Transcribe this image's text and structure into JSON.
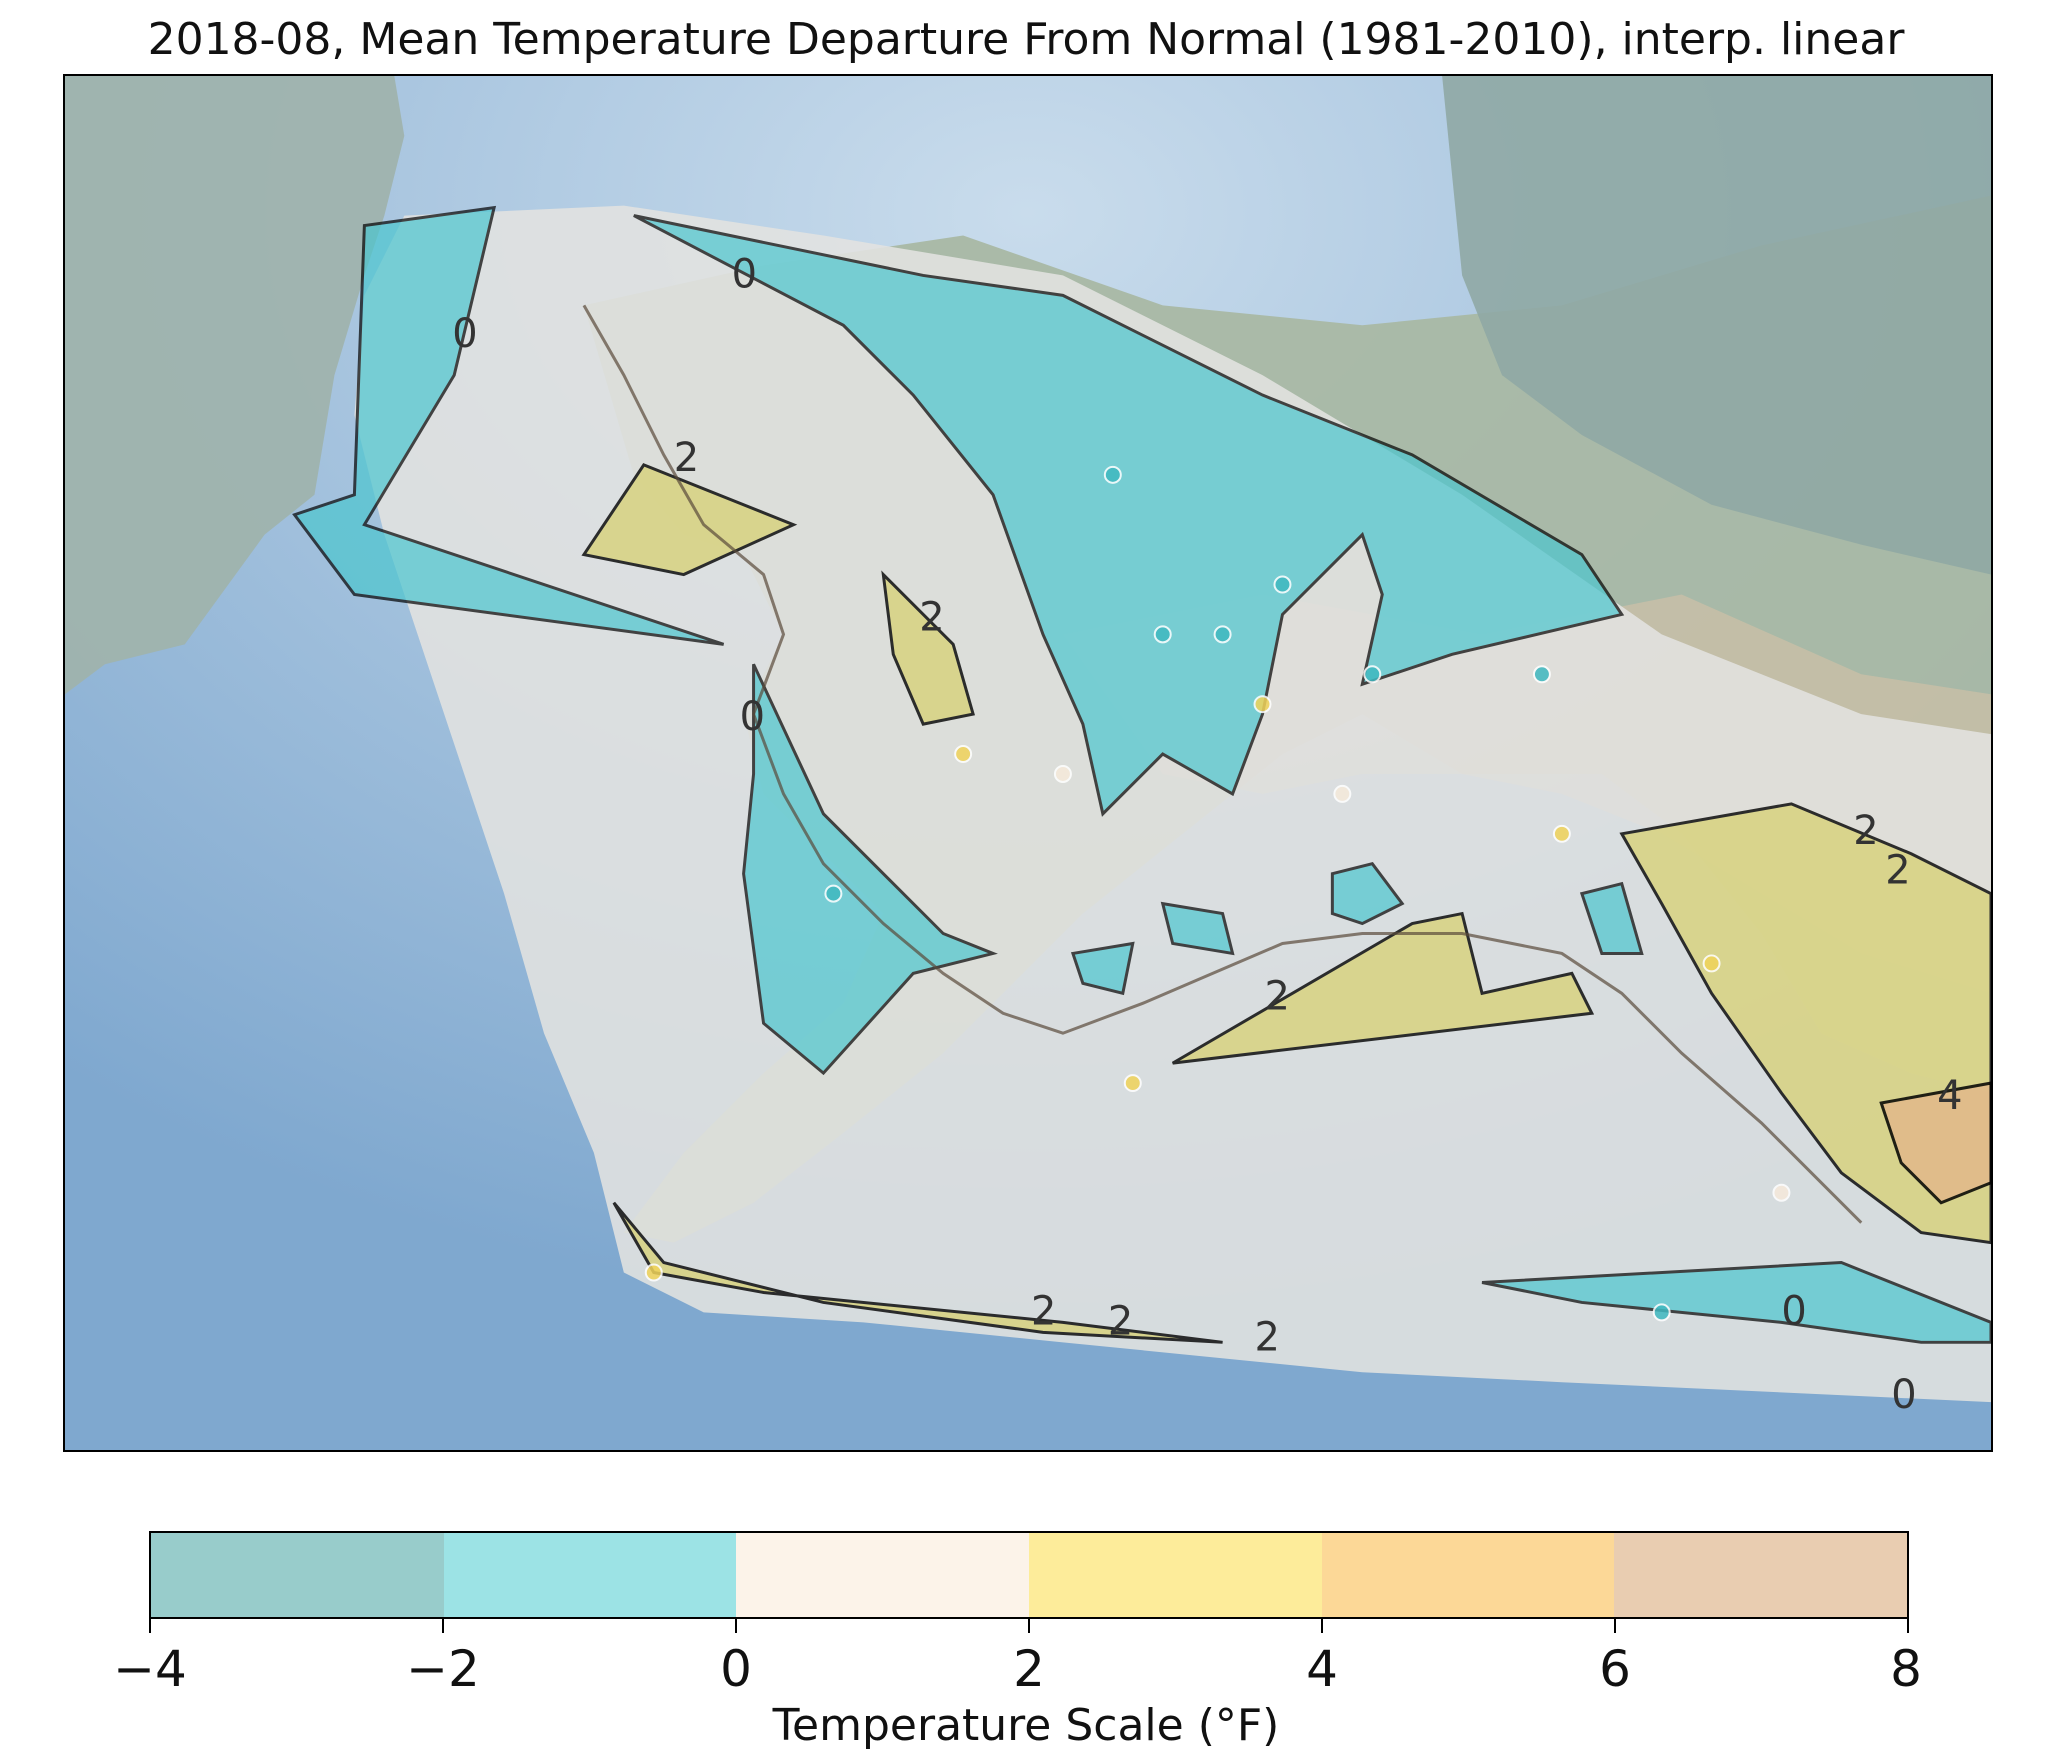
{
  "title": "2018-08, Mean Temperature Departure From Normal (1981-2010), interp. linear",
  "map": {
    "region": "Alaska",
    "contour_labels": [
      "0",
      "0",
      "2",
      "2",
      "0",
      "2",
      "2",
      "2",
      "2",
      "2",
      "2",
      "4",
      "0",
      "0"
    ],
    "colors": {
      "ocean": "#8fb4d6",
      "land": "#9fb3ad",
      "interp_field": "#e3e3e0",
      "neg_fill": "#4cc6cf",
      "pos_fill": "#d8d27a",
      "contour": "#000000",
      "coast": "#5a4a3a"
    }
  },
  "colorbar": {
    "label": "Temperature Scale (°F)",
    "ticks": [
      "−4",
      "−2",
      "0",
      "2",
      "4",
      "6",
      "8"
    ],
    "bins": [
      {
        "range": "-4 to -2",
        "color": "#98cccb"
      },
      {
        "range": "-2 to 0",
        "color": "#9ce3e5"
      },
      {
        "range": "0 to 2",
        "color": "#fcf3e9"
      },
      {
        "range": "2 to 4",
        "color": "#fdec9a"
      },
      {
        "range": "4 to 6",
        "color": "#fcd897"
      },
      {
        "range": "6 to 8",
        "color": "#e9cdb1"
      }
    ]
  }
}
